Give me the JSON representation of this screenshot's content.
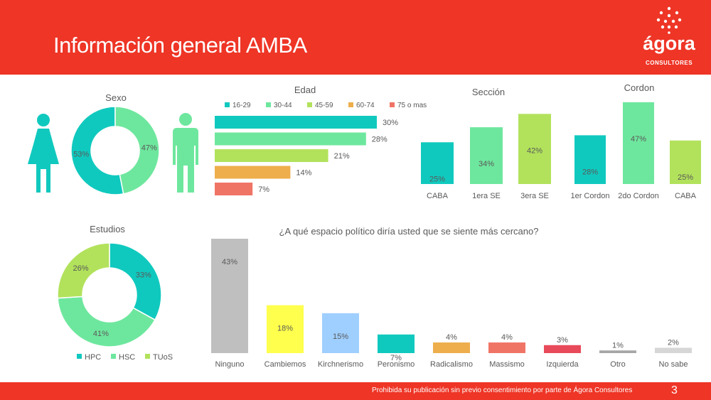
{
  "header": {
    "title": "Información general AMBA"
  },
  "logo": {
    "name": "ágora",
    "subtitle": "CONSULTORES"
  },
  "footer": {
    "disclaimer": "Prohibida su publicación sin previo consentimiento por parte de Ágora Consultores",
    "page": "3"
  },
  "colors": {
    "accent": "#ee3526",
    "teal": "#10c9be",
    "green": "#6ee79e",
    "lime": "#b2e25c",
    "orange": "#eeae4c",
    "salmon": "#f07466",
    "gray": "#bfbfbf",
    "yellow": "#ffff4d",
    "lightblue": "#9fcfff",
    "red": "#e84a5a",
    "lightgray": "#d6d6d6",
    "darkgray": "#a6a6a6"
  },
  "chart_data": [
    {
      "type": "pie",
      "title": "Sexo",
      "categories": [
        "Mujer",
        "Hombre"
      ],
      "values": [
        53,
        47
      ],
      "data_labels": [
        "53%",
        "47%"
      ],
      "colors": [
        "#10c9be",
        "#6ee79e"
      ],
      "icons": [
        "woman-icon",
        "man-icon"
      ]
    },
    {
      "type": "bar",
      "orientation": "horizontal",
      "title": "Edad",
      "categories": [
        "16-29",
        "30-44",
        "45-59",
        "60-74",
        "75 o mas"
      ],
      "values": [
        30,
        28,
        21,
        14,
        7
      ],
      "data_labels": [
        "30%",
        "28%",
        "21%",
        "14%",
        "7%"
      ],
      "colors": [
        "#10c9be",
        "#6ee79e",
        "#b2e25c",
        "#eeae4c",
        "#f07466"
      ],
      "legend": "top"
    },
    {
      "type": "bar",
      "title": "Sección",
      "categories": [
        "CABA",
        "1era SE",
        "3era SE"
      ],
      "values": [
        25,
        34,
        42
      ],
      "data_labels": [
        "25%",
        "34%",
        "42%"
      ],
      "colors": [
        "#10c9be",
        "#6ee79e",
        "#b2e25c"
      ]
    },
    {
      "type": "bar",
      "title": "Cordon",
      "categories": [
        "1er Cordon",
        "2do Cordon",
        "CABA"
      ],
      "values": [
        28,
        47,
        25
      ],
      "data_labels": [
        "28%",
        "47%",
        "25%"
      ],
      "colors": [
        "#10c9be",
        "#6ee79e",
        "#b2e25c"
      ]
    },
    {
      "type": "pie",
      "title": "Estudios",
      "categories": [
        "HPC",
        "HSC",
        "TUoS"
      ],
      "values": [
        33,
        41,
        26
      ],
      "data_labels": [
        "33%",
        "41%",
        "26%"
      ],
      "colors": [
        "#10c9be",
        "#6ee79e",
        "#b2e25c"
      ],
      "legend": "bottom"
    },
    {
      "type": "bar",
      "title": "¿A qué espacio político diría usted que se siente más cercano?",
      "categories": [
        "Ninguno",
        "Cambiemos",
        "Kirchnerismo",
        "Peronismo",
        "Radicalismo",
        "Massismo",
        "Izquierda",
        "Otro",
        "No sabe"
      ],
      "values": [
        43,
        18,
        15,
        7,
        4,
        4,
        3,
        1,
        2
      ],
      "data_labels": [
        "43%",
        "18%",
        "15%",
        "7%",
        "4%",
        "4%",
        "3%",
        "1%",
        "2%"
      ],
      "colors": [
        "#bfbfbf",
        "#ffff4d",
        "#9fcfff",
        "#10c9be",
        "#eeae4c",
        "#f07466",
        "#e84a5a",
        "#a6a6a6",
        "#d6d6d6"
      ]
    }
  ]
}
